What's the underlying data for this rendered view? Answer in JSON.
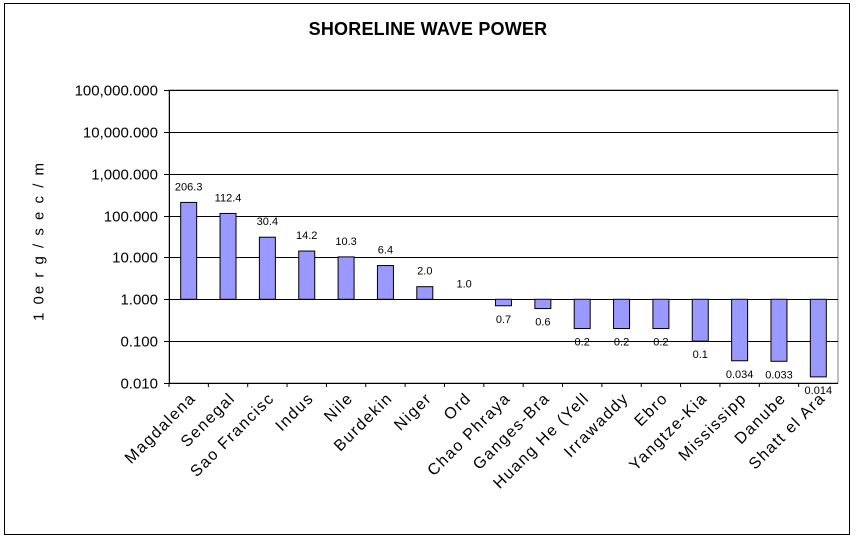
{
  "chart_data": {
    "type": "bar",
    "title": "SHORELINE WAVE POWER",
    "ylabel": "1 0e r g / s e c / m",
    "xlabel": "",
    "yscale": "log",
    "ylim": [
      0.01,
      100000
    ],
    "baseline": 1,
    "grid": true,
    "yticks": [
      "0.010",
      "0.100",
      "1.000",
      "10.000",
      "100.000",
      "1,000.000",
      "10,000.000",
      "100,000.000"
    ],
    "categories": [
      "Magdalena",
      "Senegal",
      "Sao Francisco",
      "Indus",
      "Nile",
      "Burdekin",
      "Niger",
      "Ord",
      "Chao Phraya",
      "Ganges-Brahmaputra",
      "Huang He (Yellow)",
      "Irrawaddy",
      "Ebro",
      "Yangtze-Kiang",
      "Mississippi",
      "Danube",
      "Shatt el Arab"
    ],
    "category_labels": [
      "Magdalena",
      "Senegal",
      "Sao Francisc",
      "Indus",
      "Nile",
      "Burdekin",
      "Niger",
      "Ord",
      "Chao Phraya",
      "Ganges-Bra",
      "Huang He (Yell",
      "Irrawaddy",
      "Ebro",
      "Yangtze-Kia",
      "Mississipp",
      "Danube",
      "Shatt el Ara"
    ],
    "values": [
      206.3,
      112.4,
      30.4,
      14.2,
      10.3,
      6.4,
      2.0,
      1.0,
      0.7,
      0.6,
      0.2,
      0.2,
      0.2,
      0.1,
      0.034,
      0.033,
      0.014
    ],
    "data_labels": [
      "206.3",
      "112.4",
      "30.4",
      "14.2",
      "10.3",
      "6.4",
      "2.0",
      "1.0",
      "0.7",
      "0.6",
      "0.2",
      "0.2",
      "0.2",
      "0.1",
      "0.034",
      "0.033",
      "0.014"
    ],
    "bar_color": "#9999ff",
    "bar_outline": "#000000"
  }
}
